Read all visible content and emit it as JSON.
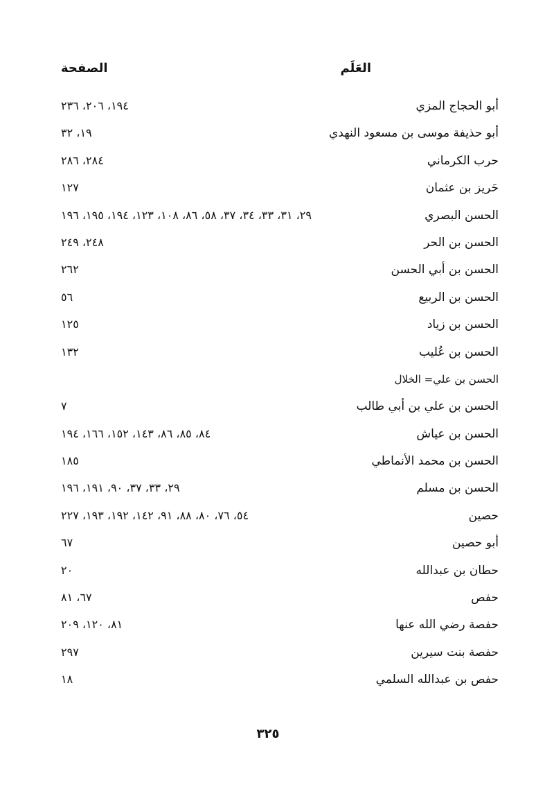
{
  "header": {
    "name_column": "العَلَم",
    "page_column": "الصفحة"
  },
  "entries": [
    {
      "name": "أبو الحجاج المزي",
      "pages": "١٩٤، ٢٠٦، ٢٣٦"
    },
    {
      "name": "أبو حذيفة موسى بن مسعود النهدي",
      "pages": "١٩، ٣٢"
    },
    {
      "name": "حرب الكرماني",
      "pages": "٢٨٤، ٢٨٦"
    },
    {
      "name": "حَريز بن عثمان",
      "pages": "١٢٧"
    },
    {
      "name": "الحسن البصري",
      "pages": "٢٩، ٣١، ٣٣، ٣٤، ٣٧، ٥٨، ٨٦، ١٠٨، ١٢٣، ١٩٤، ١٩٥، ١٩٦"
    },
    {
      "name": "الحسن بن الحر",
      "pages": "٢٤٨، ٢٤٩"
    },
    {
      "name": "الحسن بن أبي الحسن",
      "pages": "٢٦٢"
    },
    {
      "name": "الحسن بن الربيع",
      "pages": "٥٦"
    },
    {
      "name": "الحسن بن زياد",
      "pages": "١٢٥"
    },
    {
      "name": "الحسن بن عُليب",
      "pages": "١٣٢"
    },
    {
      "name": "الحسن بن علي= الخلال",
      "pages": ""
    },
    {
      "name": "الحسن بن علي بن أبي طالب",
      "pages": "٧"
    },
    {
      "name": "الحسن بن عياش",
      "pages": "٨٤، ٨٥، ٨٦، ١٤٣، ١٥٢، ١٦٦، ١٩٤"
    },
    {
      "name": "الحسن بن محمد الأنماطي",
      "pages": "١٨٥"
    },
    {
      "name": "الحسن بن مسلم",
      "pages": "٢٩، ٣٣، ٣٧، ٩٠، ١٩١، ١٩٦"
    },
    {
      "name": "حصين",
      "pages": "٥٤، ٧٦، ٨٠، ٨٨، ٩١، ١٤٢، ١٩٢، ١٩٣، ٢٢٧"
    },
    {
      "name": "أبو حصين",
      "pages": "٦٧"
    },
    {
      "name": "حطان بن عبدالله",
      "pages": "٢٠"
    },
    {
      "name": "حفص",
      "pages": "٦٧، ٨١"
    },
    {
      "name": "حفصة رضي الله عنها",
      "pages": "٨١، ١٢٠، ٢٠٩"
    },
    {
      "name": "حفصة بنت سيرين",
      "pages": "٢٩٧"
    },
    {
      "name": "حفص بن عبدالله السلمي",
      "pages": "١٨"
    }
  ],
  "footer": {
    "page_number": "٣٢٥"
  }
}
